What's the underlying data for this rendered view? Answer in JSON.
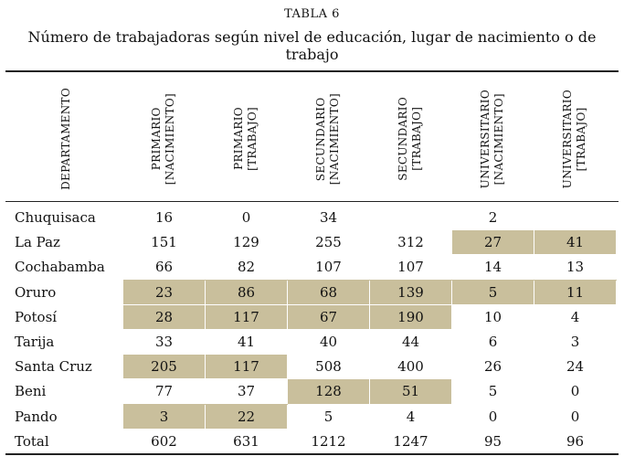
{
  "table_label": "TABLA 6",
  "title": "Número de trabajadoras según nivel de educación, lugar de nacimiento o de trabajo",
  "columns": [
    {
      "line1": "DEPARTAMENTO",
      "line2": ""
    },
    {
      "line1": "PRIMARIO",
      "line2": "[NACIMIENTO]"
    },
    {
      "line1": "PRIMARIO",
      "line2": "[TRABAJO]"
    },
    {
      "line1": "SECUNDARIO",
      "line2": "[NACIMIENTO]"
    },
    {
      "line1": "SECUNDARIO",
      "line2": "[TRABAJO]"
    },
    {
      "line1": "UNIVERSITARIO",
      "line2": "[NACIMIENTO]"
    },
    {
      "line1": "UNIVERSITARIO",
      "line2": "[TRABAJO]"
    }
  ],
  "highlight_color": "#c9bf9c",
  "rows": [
    {
      "name": "Chuquisaca",
      "values": [
        "16",
        "0",
        "34",
        "",
        "2",
        ""
      ],
      "highlighted": [
        false,
        false,
        false,
        false,
        false,
        false
      ]
    },
    {
      "name": "La Paz",
      "values": [
        "151",
        "129",
        "255",
        "312",
        "27",
        "41"
      ],
      "highlighted": [
        false,
        false,
        false,
        false,
        true,
        true
      ]
    },
    {
      "name": "Cochabamba",
      "values": [
        "66",
        "82",
        "107",
        "107",
        "14",
        "13"
      ],
      "highlighted": [
        false,
        false,
        false,
        false,
        false,
        false
      ]
    },
    {
      "name": "Oruro",
      "values": [
        "23",
        "86",
        "68",
        "139",
        "5",
        "11"
      ],
      "highlighted": [
        true,
        true,
        true,
        true,
        true,
        true
      ]
    },
    {
      "name": "Potosí",
      "values": [
        "28",
        "117",
        "67",
        "190",
        "10",
        "4"
      ],
      "highlighted": [
        true,
        true,
        true,
        true,
        false,
        false
      ]
    },
    {
      "name": "Tarija",
      "values": [
        "33",
        "41",
        "40",
        "44",
        "6",
        "3"
      ],
      "highlighted": [
        false,
        false,
        false,
        false,
        false,
        false
      ]
    },
    {
      "name": "Santa Cruz",
      "values": [
        "205",
        "117",
        "508",
        "400",
        "26",
        "24"
      ],
      "highlighted": [
        true,
        true,
        false,
        false,
        false,
        false
      ]
    },
    {
      "name": "Beni",
      "values": [
        "77",
        "37",
        "128",
        "51",
        "5",
        "0"
      ],
      "highlighted": [
        false,
        false,
        true,
        true,
        false,
        false
      ]
    },
    {
      "name": "Pando",
      "values": [
        "3",
        "22",
        "5",
        "4",
        "0",
        "0"
      ],
      "highlighted": [
        true,
        true,
        false,
        false,
        false,
        false
      ]
    },
    {
      "name": "Total",
      "values": [
        "602",
        "631",
        "1212",
        "1247",
        "95",
        "96"
      ],
      "highlighted": [
        false,
        false,
        false,
        false,
        false,
        false
      ]
    }
  ]
}
